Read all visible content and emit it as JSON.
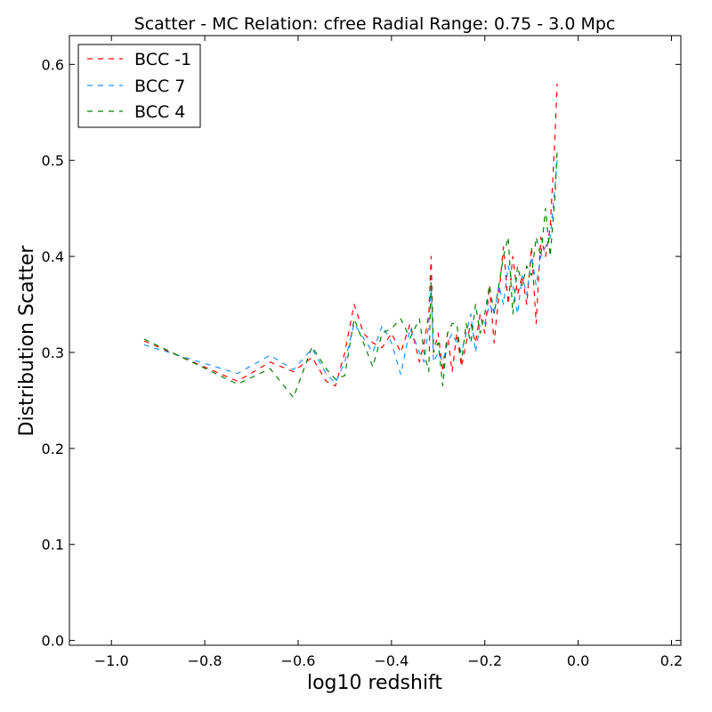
{
  "chart_data": {
    "type": "line",
    "title": "Scatter - MC Relation: cfree Radial Range: 0.75 - 3.0 Mpc",
    "xlabel": "log10 redshift",
    "ylabel": "Distribution Scatter",
    "xlim": [
      -1.09,
      0.22
    ],
    "ylim": [
      -0.005,
      0.63
    ],
    "xticks": [
      -1.0,
      -0.8,
      -0.6,
      -0.4,
      -0.2,
      0.0,
      0.2
    ],
    "xtick_labels": [
      "−1.0",
      "−0.8",
      "−0.6",
      "−0.4",
      "−0.2",
      "0.0",
      "0.2"
    ],
    "yticks": [
      0.0,
      0.1,
      0.2,
      0.3,
      0.4,
      0.5,
      0.6
    ],
    "ytick_labels": [
      "0.0",
      "0.1",
      "0.2",
      "0.3",
      "0.4",
      "0.5",
      "0.6"
    ],
    "grid": false,
    "legend_position": "top-left",
    "series": [
      {
        "name": "BCC -1",
        "color": "#ff0000",
        "style": "dashed",
        "x": [
          -0.93,
          -0.73,
          -0.66,
          -0.61,
          -0.57,
          -0.54,
          -0.52,
          -0.5,
          -0.48,
          -0.46,
          -0.44,
          -0.42,
          -0.4,
          -0.38,
          -0.36,
          -0.34,
          -0.33,
          -0.32,
          -0.315,
          -0.31,
          -0.3,
          -0.29,
          -0.28,
          -0.27,
          -0.26,
          -0.25,
          -0.24,
          -0.23,
          -0.22,
          -0.21,
          -0.2,
          -0.19,
          -0.18,
          -0.17,
          -0.16,
          -0.15,
          -0.14,
          -0.13,
          -0.12,
          -0.11,
          -0.1,
          -0.09,
          -0.08,
          -0.07,
          -0.06,
          -0.05,
          -0.045
        ],
        "y": [
          0.312,
          0.27,
          0.29,
          0.28,
          0.295,
          0.27,
          0.265,
          0.3,
          0.35,
          0.32,
          0.31,
          0.305,
          0.32,
          0.3,
          0.33,
          0.29,
          0.31,
          0.34,
          0.4,
          0.3,
          0.32,
          0.28,
          0.32,
          0.28,
          0.32,
          0.285,
          0.31,
          0.33,
          0.31,
          0.34,
          0.32,
          0.37,
          0.31,
          0.36,
          0.41,
          0.35,
          0.4,
          0.36,
          0.38,
          0.35,
          0.41,
          0.33,
          0.42,
          0.4,
          0.43,
          0.52,
          0.58
        ]
      },
      {
        "name": "BCC 7",
        "color": "#1e90ff",
        "style": "dashed",
        "x": [
          -0.93,
          -0.73,
          -0.66,
          -0.61,
          -0.57,
          -0.54,
          -0.52,
          -0.5,
          -0.48,
          -0.46,
          -0.44,
          -0.42,
          -0.4,
          -0.38,
          -0.36,
          -0.34,
          -0.33,
          -0.32,
          -0.315,
          -0.31,
          -0.3,
          -0.29,
          -0.28,
          -0.27,
          -0.26,
          -0.25,
          -0.24,
          -0.23,
          -0.22,
          -0.21,
          -0.2,
          -0.19,
          -0.18,
          -0.17,
          -0.16,
          -0.15,
          -0.14,
          -0.13,
          -0.12,
          -0.11,
          -0.1,
          -0.09,
          -0.08,
          -0.07,
          -0.06,
          -0.05,
          -0.045
        ],
        "y": [
          0.308,
          0.278,
          0.297,
          0.282,
          0.304,
          0.278,
          0.268,
          0.29,
          0.33,
          0.315,
          0.3,
          0.328,
          0.31,
          0.277,
          0.325,
          0.3,
          0.29,
          0.33,
          0.37,
          0.29,
          0.3,
          0.29,
          0.31,
          0.32,
          0.31,
          0.3,
          0.32,
          0.34,
          0.3,
          0.33,
          0.33,
          0.35,
          0.34,
          0.37,
          0.35,
          0.39,
          0.37,
          0.34,
          0.38,
          0.36,
          0.4,
          0.37,
          0.4,
          0.41,
          0.42,
          0.47,
          0.5
        ]
      },
      {
        "name": "BCC 4",
        "color": "#008000",
        "style": "dashed",
        "x": [
          -0.93,
          -0.73,
          -0.66,
          -0.61,
          -0.57,
          -0.54,
          -0.52,
          -0.5,
          -0.48,
          -0.46,
          -0.44,
          -0.42,
          -0.4,
          -0.38,
          -0.36,
          -0.34,
          -0.33,
          -0.32,
          -0.315,
          -0.31,
          -0.3,
          -0.29,
          -0.28,
          -0.27,
          -0.26,
          -0.25,
          -0.24,
          -0.23,
          -0.22,
          -0.21,
          -0.2,
          -0.19,
          -0.18,
          -0.17,
          -0.16,
          -0.15,
          -0.14,
          -0.13,
          -0.12,
          -0.11,
          -0.1,
          -0.09,
          -0.08,
          -0.07,
          -0.06,
          -0.05,
          -0.045
        ],
        "y": [
          0.314,
          0.267,
          0.283,
          0.253,
          0.306,
          0.283,
          0.272,
          0.276,
          0.335,
          0.31,
          0.285,
          0.32,
          0.325,
          0.335,
          0.315,
          0.335,
          0.3,
          0.28,
          0.38,
          0.3,
          0.31,
          0.265,
          0.32,
          0.33,
          0.33,
          0.29,
          0.33,
          0.31,
          0.35,
          0.32,
          0.34,
          0.37,
          0.34,
          0.37,
          0.4,
          0.42,
          0.34,
          0.39,
          0.37,
          0.39,
          0.38,
          0.42,
          0.4,
          0.45,
          0.4,
          0.46,
          0.51
        ]
      }
    ]
  }
}
